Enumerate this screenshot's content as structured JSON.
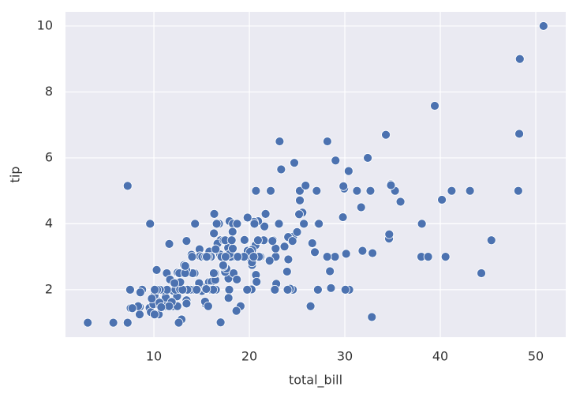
{
  "chart_data": {
    "type": "scatter",
    "xlabel": "total_bill",
    "ylabel": "tip",
    "color": "#4c72b0",
    "grid": true,
    "xlim": [
      0.74,
      53.14
    ],
    "ylim": [
      0.56,
      10.43
    ],
    "xticks": [
      10,
      20,
      30,
      40,
      50
    ],
    "yticks": [
      2,
      4,
      6,
      8,
      10
    ],
    "x": [
      16.99,
      10.34,
      21.01,
      23.68,
      24.59,
      25.29,
      8.77,
      26.88,
      15.04,
      14.78,
      10.27,
      35.26,
      15.42,
      18.43,
      14.83,
      21.58,
      10.33,
      16.29,
      16.97,
      20.65,
      17.92,
      20.29,
      15.77,
      39.42,
      19.82,
      17.81,
      13.37,
      12.69,
      21.7,
      19.65,
      9.55,
      18.35,
      15.06,
      20.69,
      17.78,
      24.06,
      16.31,
      16.93,
      18.69,
      31.27,
      16.04,
      17.46,
      13.94,
      9.68,
      30.4,
      18.29,
      22.23,
      32.4,
      28.55,
      18.04,
      12.54,
      10.29,
      34.81,
      9.94,
      25.56,
      19.49,
      38.01,
      26.41,
      11.24,
      48.27,
      20.29,
      13.81,
      11.02,
      18.29,
      17.59,
      20.08,
      16.45,
      3.07,
      20.23,
      15.01,
      12.02,
      17.07,
      26.86,
      25.28,
      14.73,
      10.51,
      17.92,
      27.2,
      22.76,
      17.29,
      19.44,
      16.66,
      10.07,
      32.68,
      15.98,
      34.83,
      13.03,
      18.28,
      24.71,
      21.16,
      28.97,
      22.49,
      5.75,
      16.32,
      22.75,
      40.17,
      27.28,
      12.03,
      21.01,
      12.46,
      11.35,
      15.38,
      44.3,
      22.42,
      20.92,
      15.36,
      20.49,
      25.21,
      18.24,
      14.31,
      14.0,
      7.25,
      38.07,
      23.95,
      25.71,
      17.31,
      29.93,
      10.65,
      12.43,
      24.08,
      11.69,
      13.42,
      14.26,
      15.95,
      12.48,
      29.8,
      8.52,
      14.52,
      11.38,
      22.82,
      19.08,
      20.27,
      11.17,
      12.26,
      18.26,
      8.51,
      10.33,
      14.15,
      16.0,
      13.16,
      17.47,
      34.3,
      41.19,
      27.05,
      16.43,
      8.35,
      18.64,
      11.87,
      9.78,
      7.51,
      14.07,
      13.13,
      17.26,
      24.55,
      19.77,
      29.85,
      48.17,
      25.0,
      13.39,
      16.49,
      21.5,
      12.66,
      16.21,
      13.81,
      17.51,
      24.52,
      20.76,
      31.71,
      10.59,
      10.63,
      50.81,
      15.81,
      7.25,
      31.85,
      16.82,
      32.9,
      17.89,
      14.48,
      9.6,
      34.63,
      34.65,
      23.33,
      45.35,
      23.17,
      40.55,
      20.69,
      20.9,
      30.46,
      18.15,
      23.1,
      15.69,
      19.81,
      28.44,
      15.48,
      16.58,
      7.56,
      10.34,
      43.11,
      13.0,
      13.51,
      18.71,
      12.74,
      13.0,
      16.4,
      20.53,
      16.47,
      26.59,
      38.73,
      24.27,
      12.76,
      30.06,
      25.89,
      48.33,
      13.27,
      28.17,
      12.9,
      28.15,
      11.59,
      7.74,
      30.14,
      12.16,
      13.42,
      8.58,
      15.98,
      13.42,
      16.27,
      10.09,
      20.45,
      13.28,
      22.12,
      24.01,
      15.69,
      11.61,
      10.77,
      15.53,
      10.07,
      12.6,
      32.83,
      35.83,
      29.03,
      27.18,
      22.67,
      17.82,
      18.78
    ],
    "values": [
      1.01,
      1.66,
      3.5,
      3.31,
      3.61,
      4.71,
      2.0,
      3.12,
      1.96,
      3.23,
      1.71,
      5.0,
      1.57,
      3.0,
      3.02,
      3.92,
      1.67,
      3.71,
      3.5,
      3.35,
      4.08,
      2.75,
      2.23,
      7.58,
      3.18,
      2.34,
      2.0,
      2.0,
      4.3,
      3.0,
      1.45,
      2.5,
      3.0,
      2.45,
      3.27,
      3.6,
      2.0,
      3.07,
      2.31,
      5.0,
      2.24,
      2.54,
      3.06,
      1.32,
      5.6,
      3.0,
      5.0,
      6.0,
      2.05,
      3.0,
      2.5,
      2.6,
      5.2,
      1.56,
      4.34,
      3.51,
      3.0,
      1.5,
      1.76,
      6.73,
      3.21,
      2.0,
      1.98,
      3.76,
      2.64,
      3.15,
      2.47,
      1.0,
      2.01,
      2.09,
      1.97,
      3.0,
      3.14,
      5.0,
      2.2,
      1.25,
      3.08,
      4.0,
      3.0,
      2.71,
      3.0,
      3.4,
      1.83,
      5.0,
      2.03,
      5.17,
      2.0,
      4.0,
      5.85,
      3.0,
      3.0,
      3.5,
      1.0,
      4.3,
      3.25,
      4.73,
      4.0,
      1.5,
      3.0,
      1.5,
      2.5,
      3.0,
      2.5,
      3.48,
      4.08,
      1.64,
      4.06,
      4.29,
      3.76,
      4.0,
      3.0,
      1.0,
      4.0,
      2.55,
      4.0,
      3.5,
      5.07,
      1.5,
      1.8,
      2.92,
      2.31,
      1.68,
      2.5,
      2.0,
      2.52,
      4.2,
      1.48,
      2.0,
      2.0,
      2.18,
      1.5,
      2.83,
      1.5,
      2.0,
      3.25,
      1.25,
      2.0,
      2.0,
      2.0,
      2.75,
      3.5,
      6.7,
      5.0,
      5.0,
      2.3,
      1.5,
      1.36,
      1.63,
      1.73,
      2.0,
      2.5,
      2.0,
      2.74,
      2.0,
      2.0,
      5.14,
      5.0,
      3.75,
      2.61,
      2.0,
      3.5,
      2.5,
      2.0,
      2.0,
      3.0,
      3.48,
      2.24,
      4.5,
      1.61,
      2.0,
      10.0,
      3.16,
      5.15,
      3.18,
      4.0,
      3.11,
      2.0,
      2.0,
      4.0,
      3.55,
      3.68,
      5.65,
      3.5,
      6.5,
      3.0,
      5.0,
      3.5,
      2.0,
      3.5,
      4.0,
      1.5,
      4.19,
      2.56,
      2.02,
      4.0,
      1.44,
      2.0,
      5.0,
      2.0,
      2.0,
      4.0,
      2.01,
      2.0,
      2.5,
      4.0,
      3.23,
      3.41,
      3.0,
      2.03,
      2.23,
      2.0,
      5.16,
      9.0,
      2.5,
      6.5,
      1.1,
      3.0,
      1.5,
      1.44,
      3.09,
      2.2,
      3.48,
      1.92,
      3.0,
      1.58,
      2.5,
      2.0,
      3.0,
      2.72,
      2.88,
      2.0,
      3.0,
      3.39,
      1.47,
      3.0,
      1.25,
      1.0,
      1.17,
      4.67,
      5.92,
      2.0,
      2.0,
      1.75,
      3.0
    ]
  }
}
